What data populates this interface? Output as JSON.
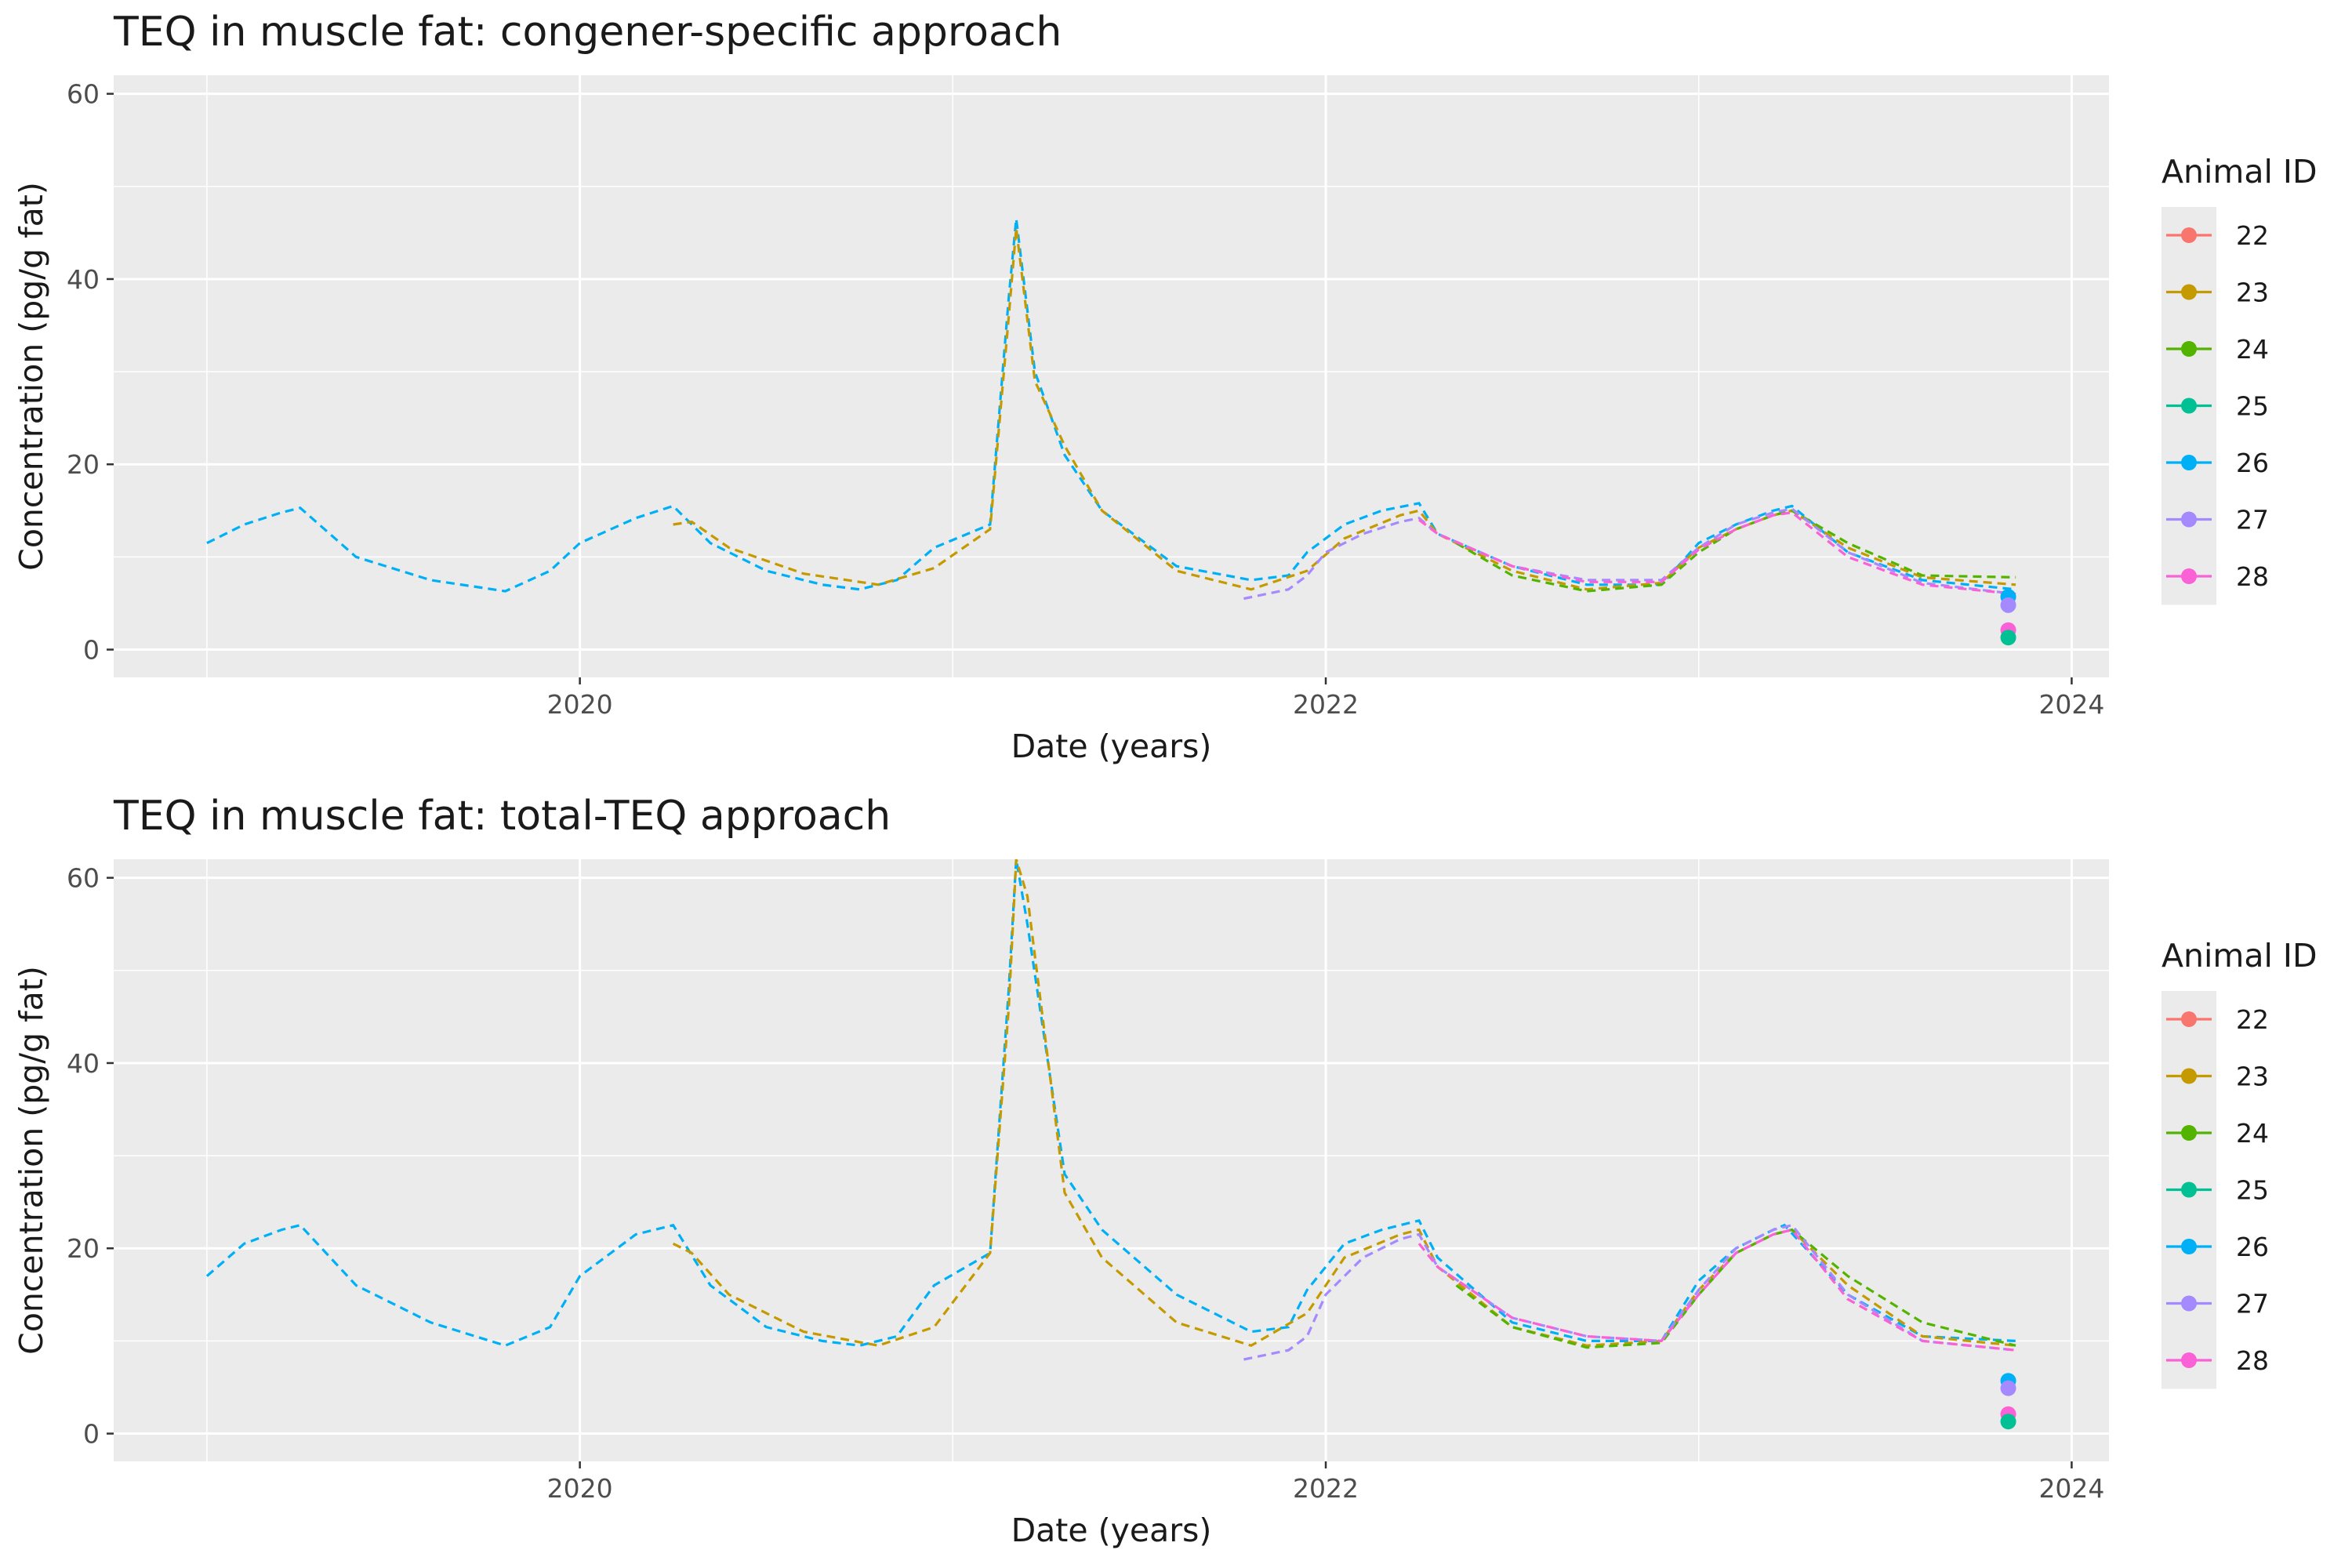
{
  "chart_data": [
    {
      "type": "line",
      "title": "TEQ in muscle fat: congener-specific approach",
      "xlabel": "Date (years)",
      "ylabel": "Concentration (pg/g fat)",
      "xlim": [
        2018.75,
        2024.1
      ],
      "ylim": [
        -3,
        62
      ],
      "x_ticks": [
        2020,
        2022,
        2024
      ],
      "y_ticks": [
        0,
        20,
        40,
        60
      ],
      "grid": true,
      "legend": {
        "title": "Animal ID",
        "position": "right",
        "entries": [
          "22",
          "23",
          "24",
          "25",
          "26",
          "27",
          "28"
        ]
      },
      "series": [
        {
          "name": "26",
          "color": "#00B0F6",
          "line": "dashed",
          "x": [
            2019.0,
            2019.1,
            2019.2,
            2019.25,
            2019.4,
            2019.6,
            2019.8,
            2019.92,
            2020.0,
            2020.15,
            2020.25,
            2020.35,
            2020.5,
            2020.65,
            2020.75,
            2020.85,
            2020.95,
            2021.1,
            2021.15,
            2021.17,
            2021.22,
            2021.3,
            2021.4,
            2021.6,
            2021.8,
            2021.9,
            2021.95,
            2022.05,
            2022.15,
            2022.25,
            2022.3,
            2022.5,
            2022.7,
            2022.9,
            2023.0,
            2023.1,
            2023.2,
            2023.25,
            2023.4,
            2023.6,
            2023.85
          ],
          "y": [
            11.5,
            13.5,
            14.8,
            15.3,
            10,
            7.5,
            6.3,
            8.5,
            11.5,
            14.2,
            15.5,
            11.5,
            8.5,
            7.0,
            6.5,
            7.5,
            11.0,
            13.5,
            38,
            46.5,
            30,
            21,
            15,
            9,
            7.5,
            8.0,
            10.5,
            13.5,
            15.0,
            15.8,
            12.5,
            9.0,
            7.0,
            7.0,
            11.5,
            13.5,
            15.0,
            15.5,
            10.5,
            7.5,
            6.5
          ]
        },
        {
          "name": "23",
          "color": "#C49A00",
          "line": "dashed",
          "x": [
            2020.25,
            2020.3,
            2020.4,
            2020.6,
            2020.8,
            2020.95,
            2021.1,
            2021.15,
            2021.17,
            2021.22,
            2021.3,
            2021.4,
            2021.6,
            2021.8,
            2021.95,
            2022.05,
            2022.2,
            2022.25,
            2022.3,
            2022.5,
            2022.7,
            2022.9,
            2023.0,
            2023.1,
            2023.2,
            2023.25,
            2023.4,
            2023.6,
            2023.85
          ],
          "y": [
            13.5,
            13.8,
            11.0,
            8.2,
            7.0,
            8.8,
            13.0,
            36,
            45.5,
            29,
            22,
            15,
            8.5,
            6.5,
            8.5,
            12.0,
            14.5,
            15.0,
            12.5,
            8.5,
            6.5,
            7.2,
            11.0,
            13.0,
            14.5,
            15.0,
            11.0,
            7.8,
            7.0
          ]
        },
        {
          "name": "24",
          "color": "#53B400",
          "line": "dashed",
          "x": [
            2022.35,
            2022.5,
            2022.7,
            2022.9,
            2023.0,
            2023.1,
            2023.2,
            2023.25,
            2023.4,
            2023.6,
            2023.85
          ],
          "y": [
            11.5,
            8.0,
            6.3,
            7.0,
            10.5,
            13.0,
            14.5,
            15.0,
            11.5,
            8.0,
            7.8
          ]
        },
        {
          "name": "27",
          "color": "#A58AFF",
          "line": "dashed",
          "x": [
            2021.78,
            2021.9,
            2021.95,
            2022.0,
            2022.1,
            2022.2,
            2022.25,
            2022.3,
            2022.5,
            2022.7,
            2022.9,
            2023.0,
            2023.1,
            2023.2,
            2023.25,
            2023.4,
            2023.6,
            2023.85
          ],
          "y": [
            5.5,
            6.5,
            8.0,
            10.5,
            12.5,
            13.8,
            14.2,
            12.5,
            9.0,
            7.5,
            7.5,
            11.0,
            13.5,
            14.8,
            15.2,
            10.5,
            7.2,
            6.0
          ]
        },
        {
          "name": "28",
          "color": "#FB61D7",
          "line": "dashed",
          "x": [
            2022.25,
            2022.3,
            2022.5,
            2022.7,
            2022.9,
            2023.0,
            2023.1,
            2023.2,
            2023.25,
            2023.4,
            2023.6,
            2023.85
          ],
          "y": [
            14.0,
            12.5,
            9.0,
            7.3,
            7.3,
            10.8,
            13.0,
            14.5,
            14.8,
            10.0,
            7.0,
            6.0
          ]
        }
      ],
      "points": [
        {
          "name": "26",
          "color": "#00B0F6",
          "x": 2023.83,
          "y": 5.7
        },
        {
          "name": "27",
          "color": "#A58AFF",
          "x": 2023.83,
          "y": 4.8
        },
        {
          "name": "28",
          "color": "#FB61D7",
          "x": 2023.83,
          "y": 2.1
        },
        {
          "name": "25",
          "color": "#00C094",
          "x": 2023.83,
          "y": 1.3
        }
      ]
    },
    {
      "type": "line",
      "title": "TEQ in muscle fat: total-TEQ approach",
      "xlabel": "Date (years)",
      "ylabel": "Concentration (pg/g fat)",
      "xlim": [
        2018.75,
        2024.1
      ],
      "ylim": [
        -3,
        62
      ],
      "x_ticks": [
        2020,
        2022,
        2024
      ],
      "y_ticks": [
        0,
        20,
        40,
        60
      ],
      "grid": true,
      "legend": {
        "title": "Animal ID",
        "position": "right",
        "entries": [
          "22",
          "23",
          "24",
          "25",
          "26",
          "27",
          "28"
        ]
      },
      "series": [
        {
          "name": "26",
          "color": "#00B0F6",
          "line": "dashed",
          "x": [
            2019.0,
            2019.1,
            2019.2,
            2019.25,
            2019.4,
            2019.6,
            2019.8,
            2019.92,
            2020.0,
            2020.15,
            2020.25,
            2020.35,
            2020.5,
            2020.65,
            2020.75,
            2020.85,
            2020.95,
            2021.1,
            2021.15,
            2021.17,
            2021.2,
            2021.3,
            2021.4,
            2021.6,
            2021.8,
            2021.9,
            2021.95,
            2022.05,
            2022.15,
            2022.25,
            2022.3,
            2022.5,
            2022.7,
            2022.9,
            2023.0,
            2023.1,
            2023.2,
            2023.23,
            2023.4,
            2023.6,
            2023.85
          ],
          "y": [
            17,
            20.5,
            22,
            22.5,
            16,
            12,
            9.5,
            11.5,
            17,
            21.5,
            22.5,
            16,
            11.5,
            10.0,
            9.5,
            10.5,
            16,
            19.5,
            48,
            62,
            55,
            28,
            22,
            15,
            11,
            11.5,
            15.5,
            20.5,
            22,
            23,
            19,
            12,
            10,
            10,
            16.5,
            20,
            22,
            22.5,
            15,
            10.5,
            10
          ]
        },
        {
          "name": "23",
          "color": "#C49A00",
          "line": "dashed",
          "x": [
            2020.25,
            2020.3,
            2020.4,
            2020.6,
            2020.8,
            2020.95,
            2021.1,
            2021.15,
            2021.17,
            2021.2,
            2021.3,
            2021.4,
            2021.6,
            2021.8,
            2021.95,
            2022.05,
            2022.2,
            2022.25,
            2022.3,
            2022.5,
            2022.7,
            2022.9,
            2023.0,
            2023.1,
            2023.2,
            2023.25,
            2023.4,
            2023.6,
            2023.85
          ],
          "y": [
            20.5,
            19.5,
            15,
            11,
            9.5,
            11.5,
            19.5,
            46,
            62,
            58,
            26,
            19,
            12,
            9.5,
            13,
            19,
            21.5,
            22,
            18,
            11.5,
            9.5,
            10,
            15.5,
            19.5,
            21.5,
            22,
            16,
            10.5,
            9.5
          ]
        },
        {
          "name": "24",
          "color": "#53B400",
          "line": "dashed",
          "x": [
            2022.35,
            2022.5,
            2022.7,
            2022.9,
            2023.0,
            2023.1,
            2023.2,
            2023.25,
            2023.4,
            2023.6,
            2023.85
          ],
          "y": [
            16,
            11.5,
            9.3,
            9.8,
            15,
            19.5,
            21.5,
            22,
            17,
            12,
            9.5
          ]
        },
        {
          "name": "27",
          "color": "#A58AFF",
          "line": "dashed",
          "x": [
            2021.78,
            2021.9,
            2021.95,
            2022.0,
            2022.1,
            2022.2,
            2022.25,
            2022.3,
            2022.5,
            2022.7,
            2022.9,
            2023.0,
            2023.1,
            2023.2,
            2023.25,
            2023.4,
            2023.6,
            2023.85
          ],
          "y": [
            8,
            9,
            10.5,
            15,
            19,
            21,
            21.5,
            18,
            12.5,
            10.5,
            10,
            15.5,
            20,
            22,
            22.5,
            15,
            10,
            9
          ]
        },
        {
          "name": "28",
          "color": "#FB61D7",
          "line": "dashed",
          "x": [
            2022.25,
            2022.3,
            2022.5,
            2022.7,
            2022.9,
            2023.0,
            2023.1,
            2023.2,
            2023.25,
            2023.4,
            2023.6,
            2023.85
          ],
          "y": [
            20.5,
            18,
            12.5,
            10.5,
            10,
            15,
            19.5,
            21.5,
            22,
            14.5,
            10,
            9
          ]
        }
      ],
      "points": [
        {
          "name": "26",
          "color": "#00B0F6",
          "x": 2023.83,
          "y": 5.7
        },
        {
          "name": "27",
          "color": "#A58AFF",
          "x": 2023.83,
          "y": 4.9
        },
        {
          "name": "28",
          "color": "#FB61D7",
          "x": 2023.83,
          "y": 2.1
        },
        {
          "name": "25",
          "color": "#00C094",
          "x": 2023.83,
          "y": 1.3
        }
      ]
    }
  ],
  "legend_colors": {
    "22": "#F8766D",
    "23": "#C49A00",
    "24": "#53B400",
    "25": "#00C094",
    "26": "#00B0F6",
    "27": "#A58AFF",
    "28": "#FB61D7"
  },
  "panel_bg": "#EBEBEB"
}
